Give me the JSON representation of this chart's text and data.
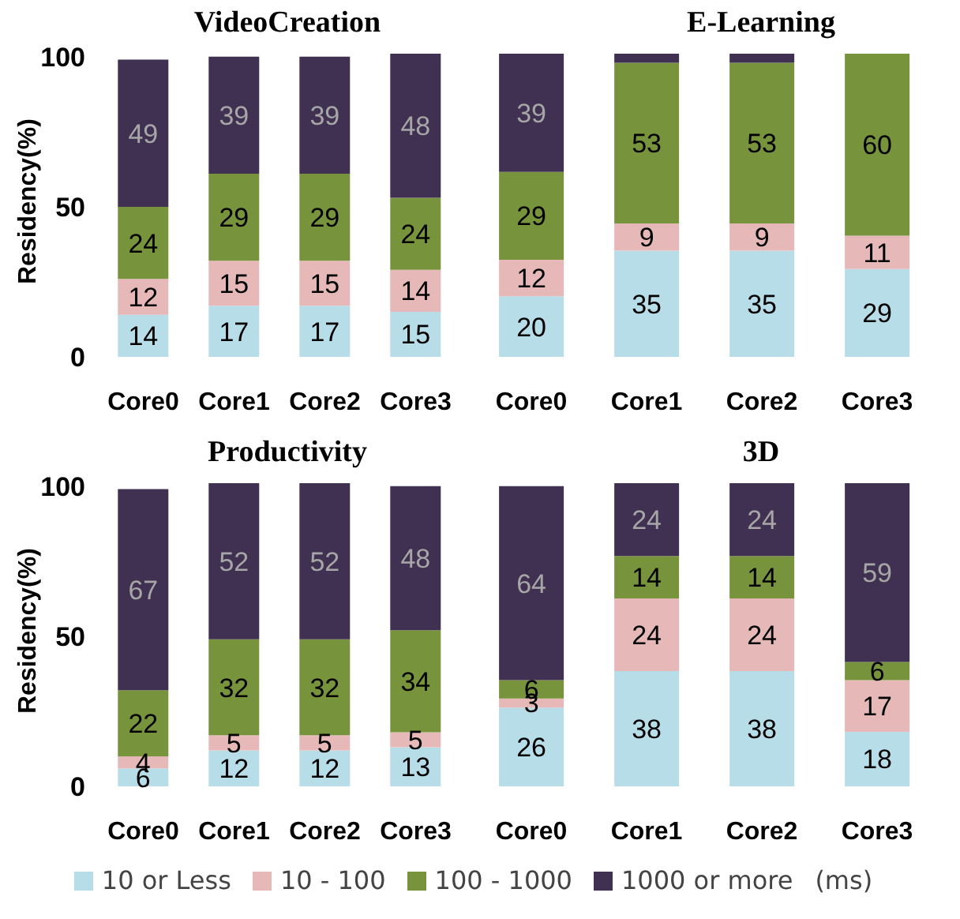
{
  "chart_data": [
    {
      "type": "bar",
      "title": "VideoCreation",
      "ylabel": "Residency(%)",
      "categories": [
        "Core0",
        "Core1",
        "Core2",
        "Core3"
      ],
      "stacked": true,
      "ylim": [
        0,
        101
      ],
      "yticks": [
        0,
        50,
        100
      ],
      "grid": false,
      "legend": false,
      "series": [
        {
          "color": "#b7dde8",
          "values": [
            14,
            17,
            17,
            15
          ],
          "value_labels": [
            "14",
            "17",
            "17",
            "15"
          ]
        },
        {
          "color": "#e6b9b8",
          "values": [
            12,
            15,
            15,
            14
          ],
          "value_labels": [
            "12",
            "15",
            "15",
            "14"
          ]
        },
        {
          "color": "#77933c",
          "values": [
            24,
            29,
            29,
            24
          ],
          "value_labels": [
            "24",
            "29",
            "29",
            "24"
          ]
        },
        {
          "color": "#403152",
          "values": [
            49,
            39,
            39,
            48
          ],
          "value_labels": [
            "49",
            "39",
            "39",
            "48"
          ]
        }
      ]
    },
    {
      "type": "bar",
      "title": "E-Learning",
      "categories": [
        "Core0",
        "Core1",
        "Core2",
        "Core3"
      ],
      "stacked": true,
      "ylim": [
        0,
        100
      ],
      "tick_labels": "x",
      "grid": false,
      "legend": false,
      "series": [
        {
          "color": "#b7dde8",
          "values": [
            20,
            35,
            35,
            29
          ],
          "value_labels": [
            "20",
            "35",
            "35",
            "29"
          ]
        },
        {
          "color": "#e6b9b8",
          "values": [
            12,
            9,
            9,
            11
          ],
          "value_labels": [
            "12",
            "9",
            "9",
            "11"
          ]
        },
        {
          "color": "#77933c",
          "values": [
            29,
            53,
            53,
            60
          ],
          "value_labels": [
            "29",
            "53",
            "53",
            "60"
          ]
        },
        {
          "color": "#403152",
          "values": [
            39,
            3,
            3,
            0
          ],
          "value_labels": [
            "39",
            null,
            null,
            null
          ]
        }
      ]
    },
    {
      "type": "bar",
      "title": "Productivity",
      "ylabel": "Residency(%)",
      "categories": [
        "Core0",
        "Core1",
        "Core2",
        "Core3"
      ],
      "stacked": true,
      "ylim": [
        0,
        101
      ],
      "yticks": [
        0,
        50,
        100
      ],
      "grid": false,
      "legend": false,
      "series": [
        {
          "color": "#b7dde8",
          "values": [
            6,
            12,
            12,
            13
          ],
          "value_labels": [
            "6",
            "12",
            "12",
            "13"
          ]
        },
        {
          "color": "#e6b9b8",
          "values": [
            4,
            5,
            5,
            5
          ],
          "value_labels": [
            "4",
            "5",
            "5",
            "5"
          ]
        },
        {
          "color": "#77933c",
          "values": [
            22,
            32,
            32,
            34
          ],
          "value_labels": [
            "22",
            "32",
            "32",
            "34"
          ]
        },
        {
          "color": "#403152",
          "values": [
            67,
            52,
            52,
            48
          ],
          "value_labels": [
            "67",
            "52",
            "52",
            "48"
          ]
        }
      ]
    },
    {
      "type": "bar",
      "title": "3D",
      "categories": [
        "Core0",
        "Core1",
        "Core2",
        "Core3"
      ],
      "stacked": true,
      "ylim": [
        0,
        100
      ],
      "tick_labels": "x",
      "grid": false,
      "legend": "bottom",
      "legend_title": "(ms)",
      "series": [
        {
          "name": "10 or Less",
          "color": "#b7dde8",
          "values": [
            26,
            38,
            38,
            18
          ],
          "value_labels": [
            "26",
            "38",
            "38",
            "18"
          ]
        },
        {
          "name": "10 - 100",
          "color": "#e6b9b8",
          "values": [
            3,
            24,
            24,
            17
          ],
          "value_labels": [
            "3",
            "24",
            "24",
            "17"
          ]
        },
        {
          "name": "100 - 1000",
          "color": "#77933c",
          "values": [
            6,
            14,
            14,
            6
          ],
          "value_labels": [
            "6",
            "14",
            "14",
            "6"
          ]
        },
        {
          "name": "1000 or more",
          "color": "#403152",
          "values": [
            64,
            24,
            24,
            59
          ],
          "value_labels": [
            "64",
            "24",
            "24",
            "59"
          ]
        }
      ]
    }
  ]
}
